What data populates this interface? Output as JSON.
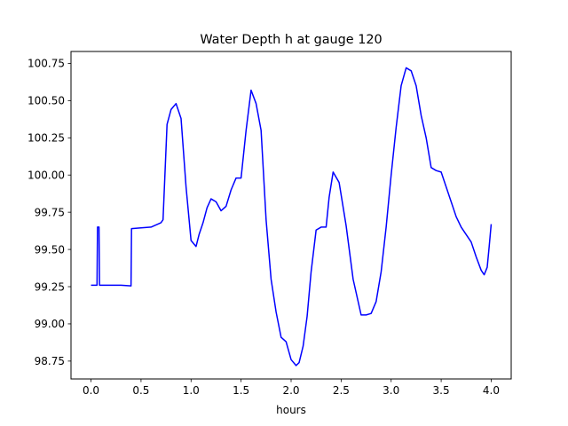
{
  "chart_data": {
    "type": "line",
    "title": "Water Depth h at gauge 120",
    "xlabel": "hours",
    "ylabel": "",
    "xlim": [
      -0.2,
      4.2
    ],
    "ylim": [
      98.63,
      100.83
    ],
    "xticks": [
      0.0,
      0.5,
      1.0,
      1.5,
      2.0,
      2.5,
      3.0,
      3.5,
      4.0
    ],
    "xtick_labels": [
      "0.0",
      "0.5",
      "1.0",
      "1.5",
      "2.0",
      "2.5",
      "3.0",
      "3.5",
      "4.0"
    ],
    "yticks": [
      98.75,
      99.0,
      99.25,
      99.5,
      99.75,
      100.0,
      100.25,
      100.5,
      100.75
    ],
    "ytick_labels": [
      "98.75",
      "99.00",
      "99.25",
      "99.50",
      "99.75",
      "100.00",
      "100.25",
      "100.50",
      "100.75"
    ],
    "grid": false,
    "series": [
      {
        "color": "#0000ff",
        "x": [
          0.0,
          0.06,
          0.065,
          0.08,
          0.085,
          0.2,
          0.3,
          0.4,
          0.405,
          0.5,
          0.6,
          0.7,
          0.72,
          0.76,
          0.8,
          0.85,
          0.9,
          0.95,
          1.0,
          1.05,
          1.08,
          1.12,
          1.16,
          1.2,
          1.25,
          1.3,
          1.35,
          1.4,
          1.45,
          1.5,
          1.55,
          1.6,
          1.65,
          1.7,
          1.75,
          1.8,
          1.85,
          1.9,
          1.95,
          2.0,
          2.05,
          2.08,
          2.12,
          2.16,
          2.2,
          2.25,
          2.3,
          2.35,
          2.38,
          2.42,
          2.48,
          2.55,
          2.62,
          2.7,
          2.75,
          2.8,
          2.85,
          2.9,
          2.95,
          3.0,
          3.05,
          3.1,
          3.15,
          3.2,
          3.25,
          3.3,
          3.35,
          3.4,
          3.45,
          3.5,
          3.55,
          3.6,
          3.65,
          3.7,
          3.75,
          3.8,
          3.85,
          3.9,
          3.93,
          3.96,
          3.98,
          4.0
        ],
        "y": [
          99.26,
          99.26,
          99.65,
          99.65,
          99.26,
          99.26,
          99.26,
          99.255,
          99.64,
          99.645,
          99.65,
          99.68,
          99.7,
          100.34,
          100.44,
          100.48,
          100.38,
          99.92,
          99.56,
          99.52,
          99.6,
          99.68,
          99.78,
          99.84,
          99.82,
          99.76,
          99.79,
          99.9,
          99.98,
          99.98,
          100.3,
          100.57,
          100.48,
          100.3,
          99.7,
          99.3,
          99.08,
          98.91,
          98.88,
          98.76,
          98.72,
          98.74,
          98.85,
          99.05,
          99.35,
          99.63,
          99.65,
          99.65,
          99.85,
          100.02,
          99.95,
          99.66,
          99.3,
          99.06,
          99.06,
          99.07,
          99.15,
          99.35,
          99.65,
          100.0,
          100.32,
          100.6,
          100.72,
          100.7,
          100.6,
          100.4,
          100.25,
          100.05,
          100.03,
          100.02,
          99.92,
          99.82,
          99.72,
          99.65,
          99.6,
          99.55,
          99.45,
          99.36,
          99.33,
          99.38,
          99.52,
          99.67
        ]
      }
    ]
  }
}
